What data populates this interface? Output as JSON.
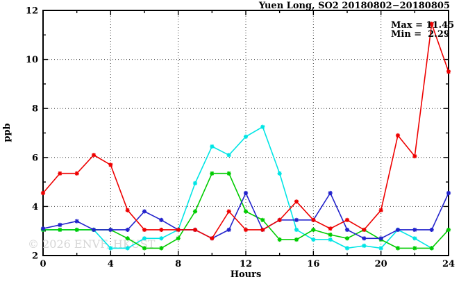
{
  "chart": {
    "title": "Yuen Long, SO2 20180802−20180805",
    "xlabel": "Hours",
    "ylabel": "ppb",
    "annotation": {
      "max_label": "Max = 11.45",
      "min_label": "Min =  2.29"
    },
    "watermark": "© 2026 ENVF, HKUST",
    "colors": {
      "red": "#ee0000",
      "blue": "#2222cc",
      "cyan": "#00e5e5",
      "green": "#00cc00"
    }
  },
  "chart_data": {
    "type": "line",
    "title": "Yuen Long, SO2 20180802−20180805",
    "xlabel": "Hours",
    "ylabel": "ppb",
    "xlim": [
      0,
      24
    ],
    "ylim": [
      2,
      12
    ],
    "x_major_ticks": [
      0,
      4,
      8,
      12,
      16,
      20,
      24
    ],
    "x_minor_ticks": [
      2,
      6,
      10,
      14,
      18,
      22
    ],
    "y_major_ticks": [
      2,
      4,
      6,
      8,
      10,
      12
    ],
    "y_minor_ticks": [
      3,
      5,
      7,
      9,
      11
    ],
    "grid_x": [
      4,
      8,
      12,
      16,
      20
    ],
    "grid_y": [
      4,
      6,
      8,
      10
    ],
    "grid": true,
    "legend_position": "none",
    "marker": "asterisk",
    "stats": {
      "max": 11.45,
      "min": 2.29
    },
    "series": [
      {
        "name": "series-cyan",
        "color": "#00e5e5",
        "x": [
          0,
          1,
          2,
          3,
          4,
          5,
          6,
          7,
          8,
          9,
          10,
          11,
          12,
          13,
          14,
          15,
          16,
          17,
          18,
          19,
          20,
          21,
          22,
          23
        ],
        "values": [
          3.05,
          3.05,
          3.05,
          3.05,
          2.3,
          2.3,
          2.7,
          2.7,
          3.05,
          4.95,
          6.45,
          6.1,
          6.85,
          7.25,
          5.35,
          3.05,
          2.65,
          2.65,
          2.3,
          2.4,
          2.3,
          3.05,
          2.7,
          2.3
        ]
      },
      {
        "name": "series-green",
        "color": "#00cc00",
        "x": [
          0,
          1,
          2,
          3,
          4,
          5,
          6,
          7,
          8,
          9,
          10,
          11,
          12,
          13,
          14,
          15,
          16,
          17,
          18,
          19,
          20,
          21,
          22,
          23,
          24
        ],
        "values": [
          3.05,
          3.05,
          3.05,
          3.05,
          3.05,
          2.7,
          2.3,
          2.3,
          2.7,
          3.8,
          5.35,
          5.35,
          3.8,
          3.45,
          2.65,
          2.65,
          3.05,
          2.85,
          2.7,
          3.05,
          2.65,
          2.3,
          2.3,
          2.3,
          3.05
        ]
      },
      {
        "name": "series-blue",
        "color": "#2222cc",
        "x": [
          0,
          1,
          2,
          3,
          4,
          5,
          6,
          7,
          8,
          9,
          10,
          11,
          12,
          13,
          14,
          15,
          16,
          17,
          18,
          19,
          20,
          21,
          22,
          23,
          24
        ],
        "values": [
          3.1,
          3.25,
          3.4,
          3.05,
          3.05,
          3.05,
          3.8,
          3.45,
          3.05,
          3.05,
          2.7,
          3.05,
          4.55,
          3.05,
          3.45,
          3.45,
          3.45,
          4.55,
          3.05,
          2.7,
          2.7,
          3.05,
          3.05,
          3.05,
          4.55
        ]
      },
      {
        "name": "series-red",
        "color": "#ee0000",
        "x": [
          0,
          1,
          2,
          3,
          4,
          5,
          6,
          7,
          8,
          9,
          10,
          11,
          12,
          13,
          14,
          15,
          16,
          17,
          18,
          19,
          20,
          21,
          22,
          23,
          24
        ],
        "values": [
          4.55,
          5.35,
          5.35,
          6.1,
          5.7,
          3.85,
          3.05,
          3.05,
          3.05,
          3.05,
          2.7,
          3.8,
          3.05,
          3.05,
          3.45,
          4.2,
          3.45,
          3.1,
          3.45,
          3.05,
          3.85,
          6.9,
          6.05,
          11.45,
          9.5
        ]
      }
    ]
  }
}
